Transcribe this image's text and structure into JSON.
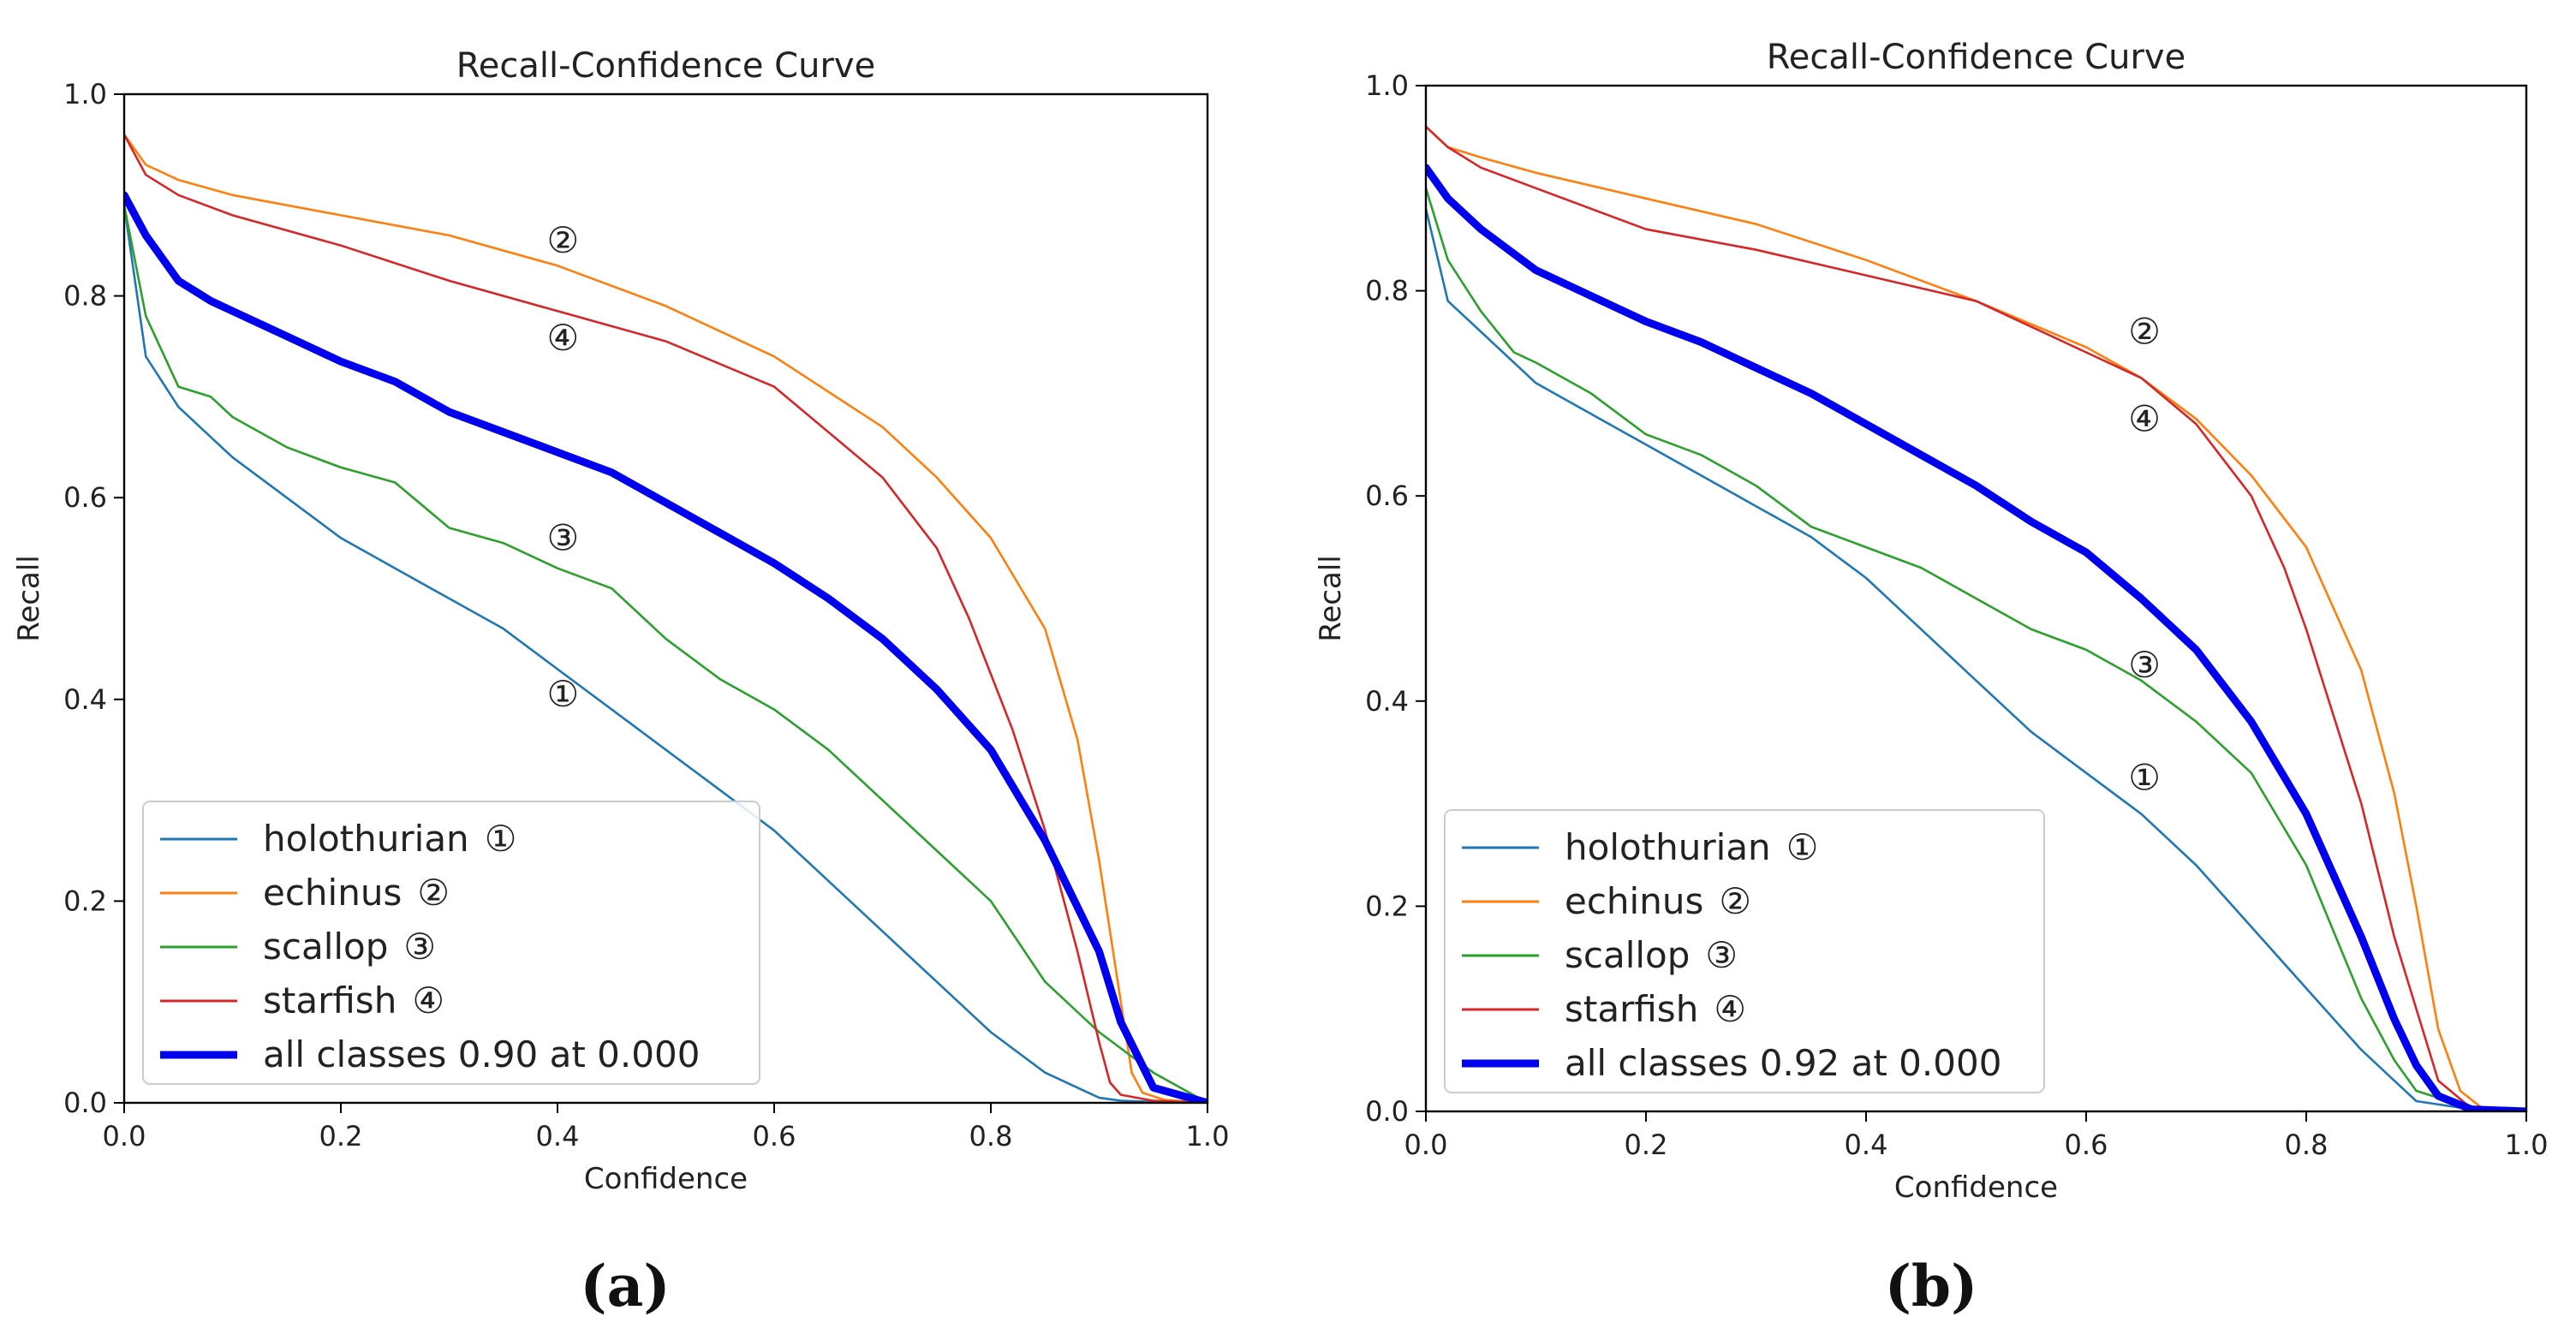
{
  "chart_data": [
    {
      "type": "line",
      "panel_caption": "(a)",
      "title": "Recall-Confidence Curve",
      "xlabel": "Confidence",
      "ylabel": "Recall",
      "xlim": [
        0,
        1
      ],
      "ylim": [
        0,
        1
      ],
      "xticks": [
        "0.0",
        "0.2",
        "0.4",
        "0.6",
        "0.8",
        "1.0"
      ],
      "yticks": [
        "0.0",
        "0.2",
        "0.4",
        "0.6",
        "0.8",
        "1.0"
      ],
      "legend_location": "lower-left",
      "series": [
        {
          "name": "holothurian",
          "marker": "①",
          "color": "#1f77b4",
          "x": [
            0,
            0.02,
            0.05,
            0.1,
            0.15,
            0.2,
            0.25,
            0.3,
            0.35,
            0.4,
            0.45,
            0.5,
            0.55,
            0.6,
            0.65,
            0.7,
            0.75,
            0.8,
            0.85,
            0.9,
            0.92,
            0.95,
            1.0
          ],
          "y": [
            0.89,
            0.74,
            0.69,
            0.64,
            0.6,
            0.56,
            0.53,
            0.5,
            0.47,
            0.43,
            0.39,
            0.35,
            0.31,
            0.27,
            0.22,
            0.17,
            0.12,
            0.07,
            0.03,
            0.005,
            0.002,
            0.001,
            0
          ]
        },
        {
          "name": "echinus",
          "marker": "②",
          "color": "#ff7f0e",
          "x": [
            0,
            0.02,
            0.05,
            0.1,
            0.2,
            0.3,
            0.4,
            0.5,
            0.6,
            0.7,
            0.75,
            0.8,
            0.85,
            0.88,
            0.9,
            0.92,
            0.93,
            0.94,
            0.96,
            1.0
          ],
          "y": [
            0.96,
            0.93,
            0.915,
            0.9,
            0.88,
            0.86,
            0.83,
            0.79,
            0.74,
            0.67,
            0.62,
            0.56,
            0.47,
            0.36,
            0.24,
            0.1,
            0.03,
            0.01,
            0.003,
            0
          ]
        },
        {
          "name": "scallop",
          "marker": "③",
          "color": "#2ca02c",
          "x": [
            0,
            0.02,
            0.05,
            0.08,
            0.1,
            0.15,
            0.2,
            0.25,
            0.3,
            0.35,
            0.4,
            0.45,
            0.5,
            0.55,
            0.6,
            0.65,
            0.7,
            0.75,
            0.8,
            0.85,
            0.9,
            0.95,
            1.0
          ],
          "y": [
            0.89,
            0.78,
            0.71,
            0.7,
            0.68,
            0.65,
            0.63,
            0.615,
            0.57,
            0.555,
            0.53,
            0.51,
            0.46,
            0.42,
            0.39,
            0.35,
            0.3,
            0.25,
            0.2,
            0.12,
            0.07,
            0.03,
            0
          ]
        },
        {
          "name": "starfish",
          "marker": "④",
          "color": "#d62728",
          "x": [
            0,
            0.02,
            0.05,
            0.1,
            0.2,
            0.3,
            0.4,
            0.5,
            0.6,
            0.7,
            0.75,
            0.78,
            0.82,
            0.85,
            0.88,
            0.9,
            0.91,
            0.92,
            0.95,
            1.0
          ],
          "y": [
            0.96,
            0.92,
            0.9,
            0.88,
            0.85,
            0.815,
            0.785,
            0.755,
            0.71,
            0.62,
            0.55,
            0.48,
            0.37,
            0.27,
            0.15,
            0.06,
            0.02,
            0.008,
            0.002,
            0
          ]
        },
        {
          "name": "all classes 0.90 at 0.000",
          "marker": "",
          "color": "#0000ee",
          "bold": true,
          "x": [
            0,
            0.02,
            0.05,
            0.08,
            0.1,
            0.15,
            0.2,
            0.25,
            0.3,
            0.35,
            0.4,
            0.45,
            0.5,
            0.55,
            0.6,
            0.65,
            0.7,
            0.75,
            0.8,
            0.85,
            0.9,
            0.92,
            0.95,
            1.0
          ],
          "y": [
            0.9,
            0.86,
            0.815,
            0.795,
            0.785,
            0.76,
            0.735,
            0.715,
            0.685,
            0.665,
            0.645,
            0.625,
            0.595,
            0.565,
            0.535,
            0.5,
            0.46,
            0.41,
            0.35,
            0.26,
            0.15,
            0.08,
            0.015,
            0
          ]
        }
      ],
      "annotations": [
        {
          "text": "②",
          "x": 0.405,
          "y": 0.855
        },
        {
          "text": "④",
          "x": 0.405,
          "y": 0.758
        },
        {
          "text": "③",
          "x": 0.405,
          "y": 0.56
        },
        {
          "text": "①",
          "x": 0.405,
          "y": 0.405
        }
      ]
    },
    {
      "type": "line",
      "panel_caption": "(b)",
      "title": "Recall-Confidence Curve",
      "xlabel": "Confidence",
      "ylabel": "Recall",
      "xlim": [
        0,
        1
      ],
      "ylim": [
        0,
        1
      ],
      "xticks": [
        "0.0",
        "0.2",
        "0.4",
        "0.6",
        "0.8",
        "1.0"
      ],
      "yticks": [
        "0.0",
        "0.2",
        "0.4",
        "0.6",
        "0.8",
        "1.0"
      ],
      "legend_location": "lower-left",
      "series": [
        {
          "name": "holothurian",
          "marker": "①",
          "color": "#1f77b4",
          "x": [
            0,
            0.02,
            0.05,
            0.1,
            0.15,
            0.2,
            0.25,
            0.3,
            0.35,
            0.4,
            0.45,
            0.5,
            0.55,
            0.6,
            0.65,
            0.7,
            0.75,
            0.8,
            0.85,
            0.88,
            0.9,
            0.95,
            1.0
          ],
          "y": [
            0.88,
            0.79,
            0.76,
            0.71,
            0.68,
            0.65,
            0.62,
            0.59,
            0.56,
            0.52,
            0.47,
            0.42,
            0.37,
            0.33,
            0.29,
            0.24,
            0.18,
            0.12,
            0.06,
            0.03,
            0.01,
            0.002,
            0
          ]
        },
        {
          "name": "echinus",
          "marker": "②",
          "color": "#ff7f0e",
          "x": [
            0,
            0.02,
            0.05,
            0.1,
            0.2,
            0.3,
            0.4,
            0.5,
            0.6,
            0.65,
            0.7,
            0.75,
            0.8,
            0.85,
            0.88,
            0.9,
            0.92,
            0.94,
            0.96,
            1.0
          ],
          "y": [
            0.96,
            0.94,
            0.93,
            0.915,
            0.89,
            0.865,
            0.83,
            0.79,
            0.745,
            0.715,
            0.675,
            0.62,
            0.55,
            0.43,
            0.31,
            0.2,
            0.08,
            0.02,
            0.003,
            0
          ]
        },
        {
          "name": "scallop",
          "marker": "③",
          "color": "#2ca02c",
          "x": [
            0,
            0.02,
            0.05,
            0.08,
            0.1,
            0.15,
            0.2,
            0.25,
            0.3,
            0.35,
            0.4,
            0.45,
            0.5,
            0.55,
            0.6,
            0.65,
            0.7,
            0.75,
            0.8,
            0.85,
            0.88,
            0.9,
            0.95,
            1.0
          ],
          "y": [
            0.9,
            0.83,
            0.78,
            0.74,
            0.73,
            0.7,
            0.66,
            0.64,
            0.61,
            0.57,
            0.55,
            0.53,
            0.5,
            0.47,
            0.45,
            0.42,
            0.38,
            0.33,
            0.24,
            0.11,
            0.05,
            0.02,
            0.003,
            0
          ]
        },
        {
          "name": "starfish",
          "marker": "④",
          "color": "#d62728",
          "x": [
            0,
            0.02,
            0.05,
            0.1,
            0.2,
            0.3,
            0.4,
            0.5,
            0.6,
            0.65,
            0.7,
            0.75,
            0.78,
            0.8,
            0.85,
            0.88,
            0.9,
            0.92,
            0.95,
            1.0
          ],
          "y": [
            0.96,
            0.94,
            0.92,
            0.9,
            0.86,
            0.84,
            0.815,
            0.79,
            0.74,
            0.715,
            0.67,
            0.6,
            0.53,
            0.47,
            0.3,
            0.17,
            0.1,
            0.03,
            0.003,
            0
          ]
        },
        {
          "name": "all classes 0.92 at 0.000",
          "marker": "",
          "color": "#0000ee",
          "bold": true,
          "x": [
            0,
            0.02,
            0.05,
            0.1,
            0.15,
            0.2,
            0.25,
            0.3,
            0.35,
            0.4,
            0.45,
            0.5,
            0.55,
            0.6,
            0.65,
            0.7,
            0.75,
            0.8,
            0.85,
            0.88,
            0.9,
            0.92,
            0.95,
            1.0
          ],
          "y": [
            0.92,
            0.89,
            0.86,
            0.82,
            0.795,
            0.77,
            0.75,
            0.725,
            0.7,
            0.67,
            0.64,
            0.61,
            0.575,
            0.545,
            0.5,
            0.45,
            0.38,
            0.29,
            0.17,
            0.09,
            0.045,
            0.015,
            0.002,
            0
          ]
        }
      ],
      "annotations": [
        {
          "text": "②",
          "x": 0.653,
          "y": 0.76
        },
        {
          "text": "④",
          "x": 0.653,
          "y": 0.675
        },
        {
          "text": "③",
          "x": 0.653,
          "y": 0.435
        },
        {
          "text": "①",
          "x": 0.653,
          "y": 0.325
        }
      ]
    }
  ]
}
